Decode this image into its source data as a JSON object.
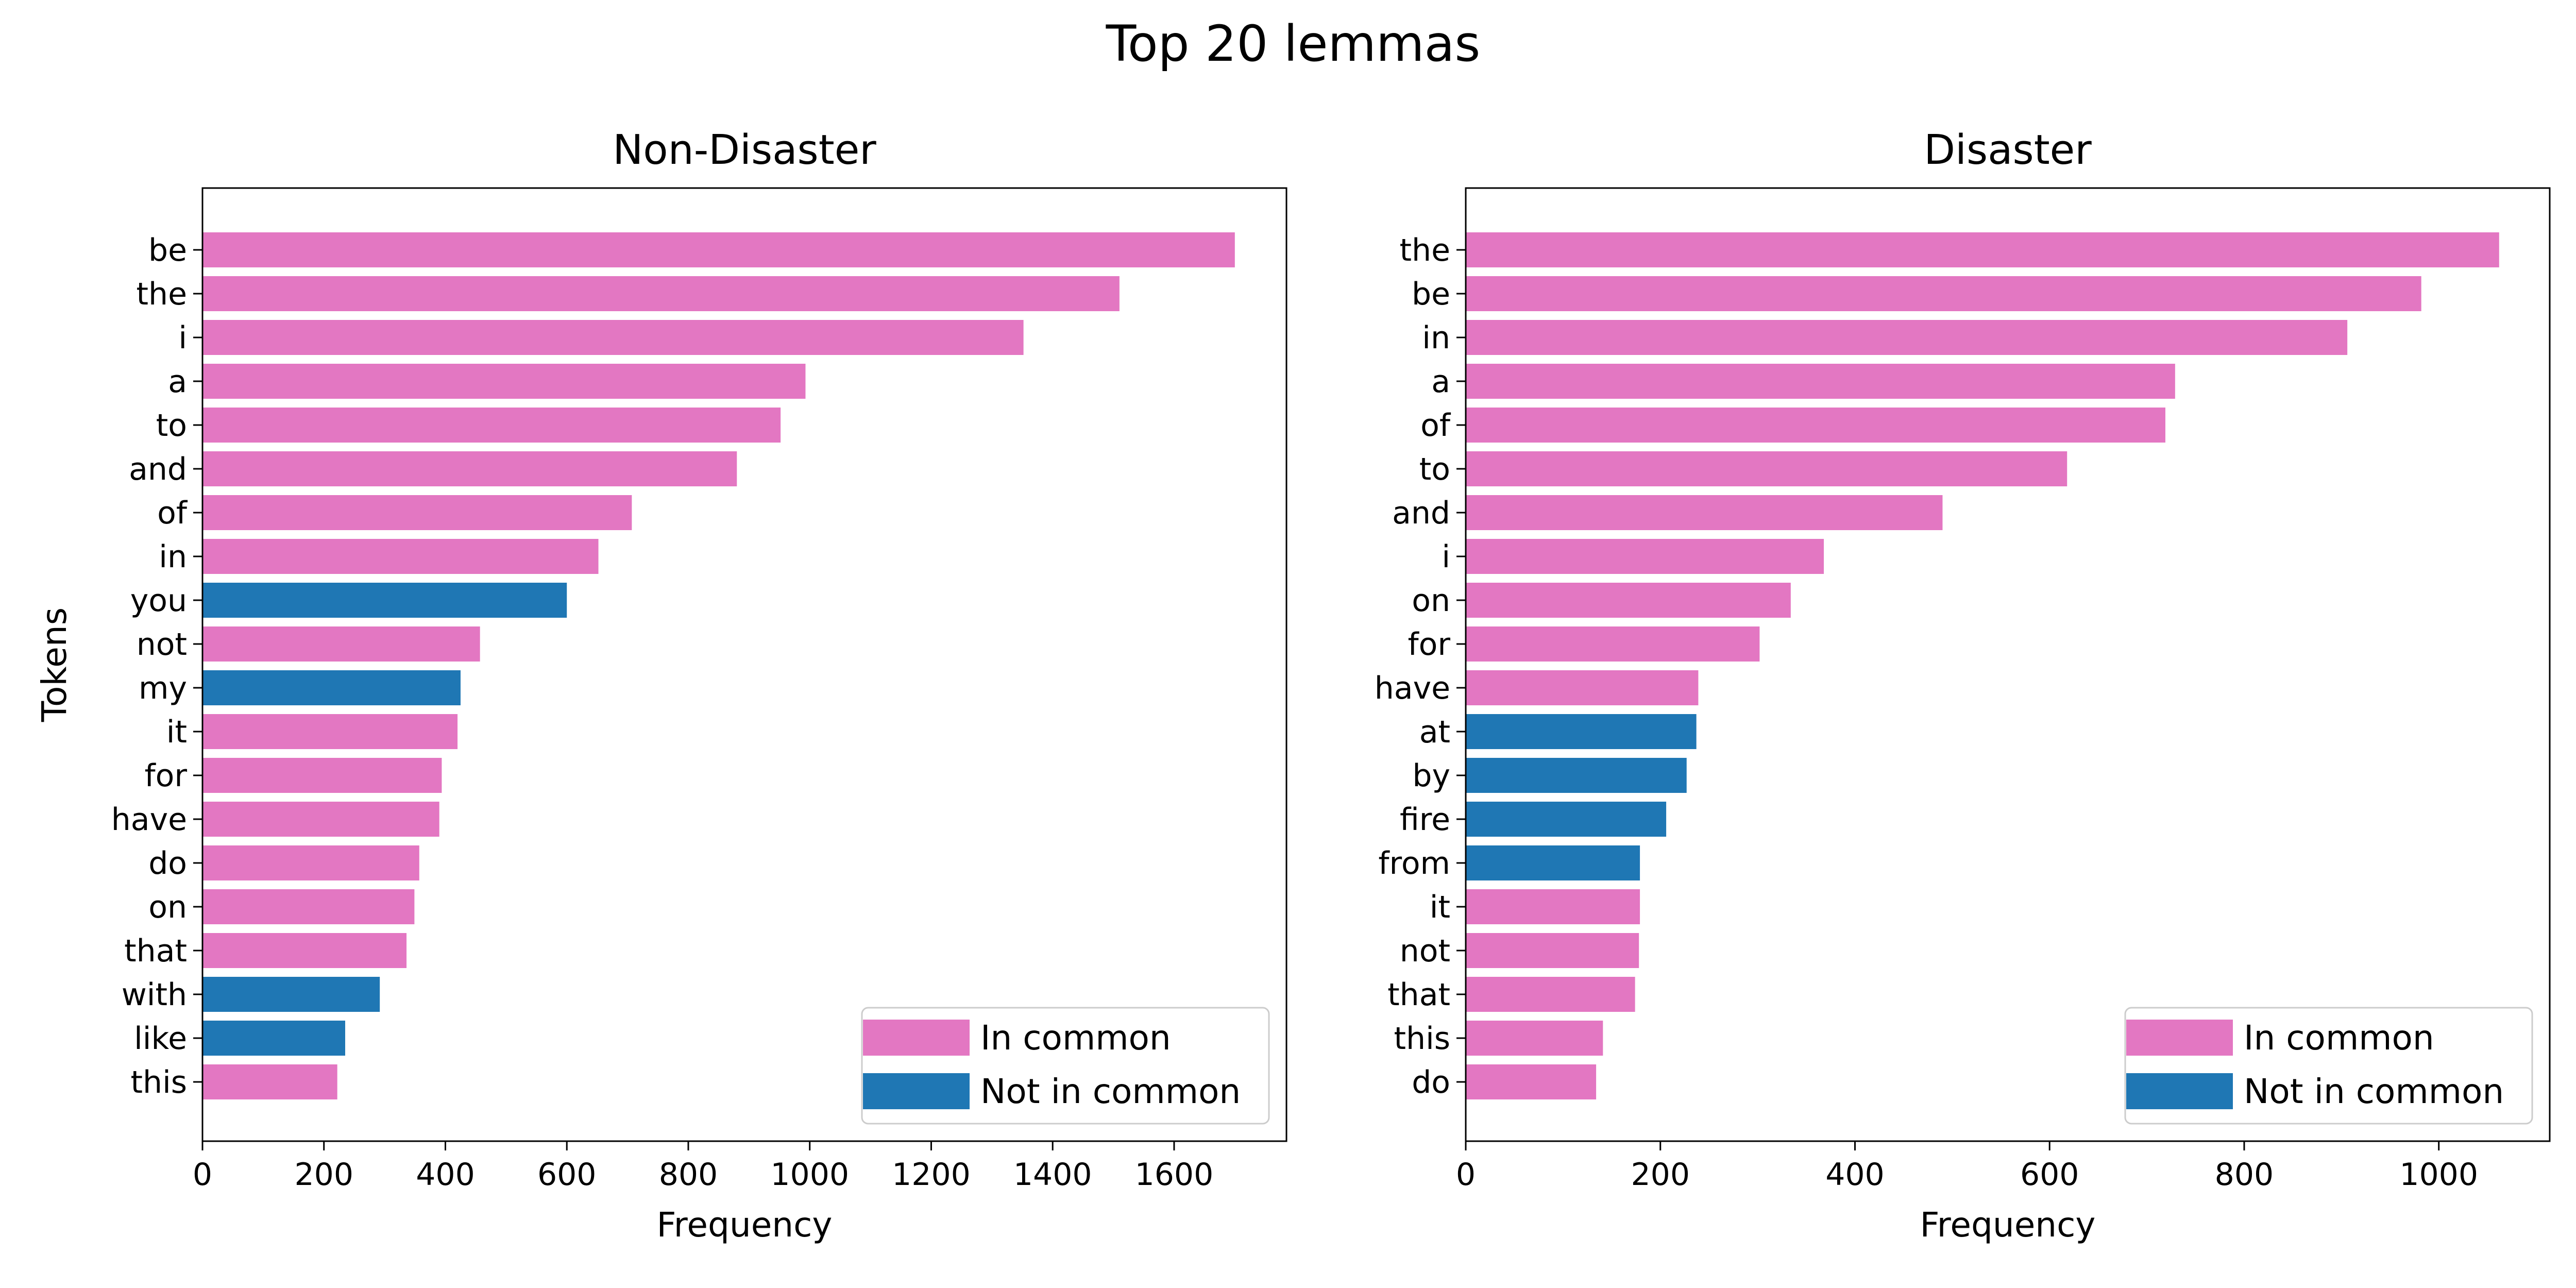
{
  "figure_title": "Top 20 lemmas",
  "colors": {
    "in_common": "#e377c2",
    "not_in_common": "#1f77b4"
  },
  "chart_data": [
    {
      "type": "bar",
      "orientation": "horizontal",
      "title": "Non-Disaster",
      "xlabel": "Frequency",
      "ylabel": "Tokens",
      "xlim": [
        0,
        1785
      ],
      "xticks": [
        0,
        200,
        400,
        600,
        800,
        1000,
        1200,
        1400,
        1600
      ],
      "categories": [
        "be",
        "the",
        "i",
        "a",
        "to",
        "and",
        "of",
        "in",
        "you",
        "not",
        "my",
        "it",
        "for",
        "have",
        "do",
        "on",
        "that",
        "with",
        "like",
        "this"
      ],
      "values": [
        1700,
        1510,
        1352,
        993,
        952,
        880,
        707,
        652,
        600,
        457,
        425,
        420,
        394,
        390,
        357,
        349,
        336,
        292,
        235,
        222
      ],
      "groups": [
        "In common",
        "In common",
        "In common",
        "In common",
        "In common",
        "In common",
        "In common",
        "In common",
        "Not in common",
        "In common",
        "Not in common",
        "In common",
        "In common",
        "In common",
        "In common",
        "In common",
        "In common",
        "Not in common",
        "Not in common",
        "In common"
      ],
      "legend": {
        "placement": "lower-right",
        "entries": [
          {
            "label": "In common",
            "color": "#e377c2"
          },
          {
            "label": "Not in common",
            "color": "#1f77b4"
          }
        ]
      },
      "grid": false
    },
    {
      "type": "bar",
      "orientation": "horizontal",
      "title": "Disaster",
      "xlabel": "Frequency",
      "ylabel": "",
      "xlim": [
        0,
        1114
      ],
      "xticks": [
        0,
        200,
        400,
        600,
        800,
        1000
      ],
      "categories": [
        "the",
        "be",
        "in",
        "a",
        "of",
        "to",
        "and",
        "i",
        "on",
        "for",
        "have",
        "at",
        "by",
        "fire",
        "from",
        "it",
        "not",
        "that",
        "this",
        "do"
      ],
      "values": [
        1062,
        982,
        906,
        729,
        719,
        618,
        490,
        368,
        334,
        302,
        239,
        237,
        227,
        206,
        179,
        179,
        178,
        174,
        141,
        134
      ],
      "groups": [
        "In common",
        "In common",
        "In common",
        "In common",
        "In common",
        "In common",
        "In common",
        "In common",
        "In common",
        "In common",
        "In common",
        "Not in common",
        "Not in common",
        "Not in common",
        "Not in common",
        "In common",
        "In common",
        "In common",
        "In common",
        "In common"
      ],
      "legend": {
        "placement": "lower-right",
        "entries": [
          {
            "label": "In common",
            "color": "#e377c2"
          },
          {
            "label": "Not in common",
            "color": "#1f77b4"
          }
        ]
      },
      "grid": false
    }
  ]
}
